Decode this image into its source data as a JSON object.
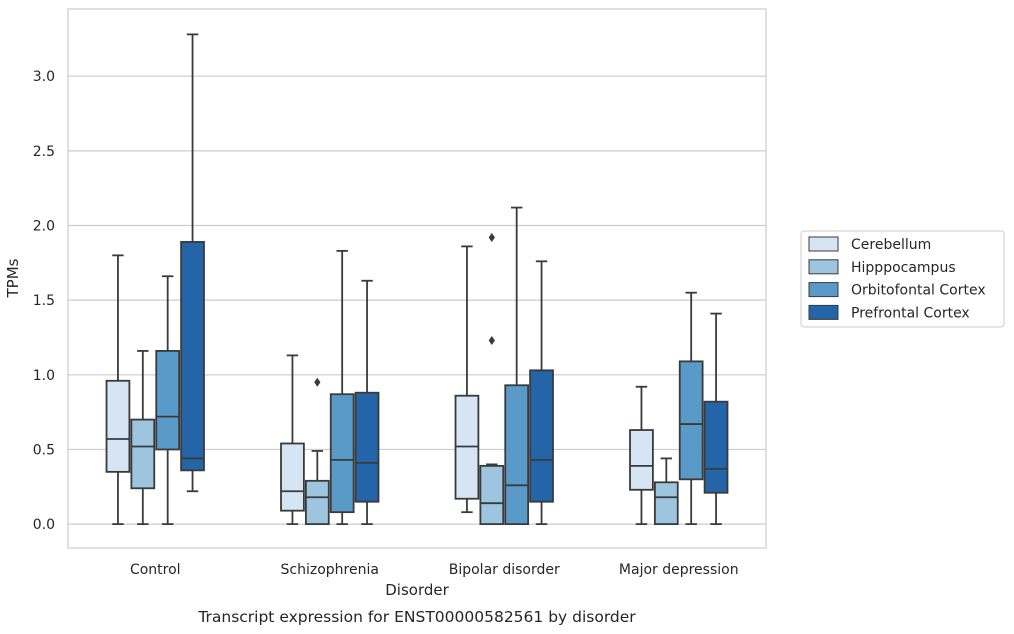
{
  "chart_data": {
    "type": "box",
    "caption": "Transcript expression for ENST00000582561 by disorder",
    "xlabel": "Disorder",
    "ylabel": "TPMs",
    "ylim": [
      -0.16,
      3.45
    ],
    "yticks": [
      0.0,
      0.5,
      1.0,
      1.5,
      2.0,
      2.5,
      3.0
    ],
    "ytick_labels": [
      "0.0",
      "0.5",
      "1.0",
      "1.5",
      "2.0",
      "2.5",
      "3.0"
    ],
    "grid": "horizontal",
    "legend_position": "right",
    "categories": [
      "Control",
      "Schizophrenia",
      "Bipolar disorder",
      "Major depression"
    ],
    "series": [
      {
        "name": "Cerebellum",
        "color": "#d5e5f3",
        "boxes": [
          {
            "whislo": 0.0,
            "q1": 0.35,
            "med": 0.57,
            "q3": 0.96,
            "whishi": 1.8,
            "fliers": []
          },
          {
            "whislo": 0.0,
            "q1": 0.09,
            "med": 0.22,
            "q3": 0.54,
            "whishi": 1.13,
            "fliers": []
          },
          {
            "whislo": 0.08,
            "q1": 0.17,
            "med": 0.52,
            "q3": 0.86,
            "whishi": 1.86,
            "fliers": []
          },
          {
            "whislo": 0.0,
            "q1": 0.23,
            "med": 0.39,
            "q3": 0.63,
            "whishi": 0.92,
            "fliers": []
          }
        ]
      },
      {
        "name": "Hipppocampus",
        "color": "#9dc5df",
        "boxes": [
          {
            "whislo": 0.0,
            "q1": 0.24,
            "med": 0.52,
            "q3": 0.7,
            "whishi": 1.16,
            "fliers": []
          },
          {
            "whislo": 0.0,
            "q1": 0.0,
            "med": 0.18,
            "q3": 0.29,
            "whishi": 0.49,
            "fliers": [
              0.95
            ]
          },
          {
            "whislo": 0.0,
            "q1": 0.0,
            "med": 0.14,
            "q3": 0.39,
            "whishi": 0.4,
            "fliers": [
              1.92,
              1.23
            ]
          },
          {
            "whislo": 0.0,
            "q1": 0.0,
            "med": 0.18,
            "q3": 0.28,
            "whishi": 0.44,
            "fliers": []
          }
        ]
      },
      {
        "name": "Orbitofontal Cortex",
        "color": "#5a9ac8",
        "boxes": [
          {
            "whislo": 0.0,
            "q1": 0.5,
            "med": 0.72,
            "q3": 1.16,
            "whishi": 1.66,
            "fliers": []
          },
          {
            "whislo": 0.0,
            "q1": 0.08,
            "med": 0.43,
            "q3": 0.87,
            "whishi": 1.83,
            "fliers": []
          },
          {
            "whislo": 0.0,
            "q1": 0.0,
            "med": 0.26,
            "q3": 0.93,
            "whishi": 2.12,
            "fliers": []
          },
          {
            "whislo": 0.0,
            "q1": 0.3,
            "med": 0.67,
            "q3": 1.09,
            "whishi": 1.55,
            "fliers": []
          }
        ]
      },
      {
        "name": "Prefrontal Cortex",
        "color": "#2464a8",
        "boxes": [
          {
            "whislo": 0.22,
            "q1": 0.36,
            "med": 0.44,
            "q3": 1.89,
            "whishi": 3.28,
            "fliers": []
          },
          {
            "whislo": 0.0,
            "q1": 0.15,
            "med": 0.41,
            "q3": 0.88,
            "whishi": 1.63,
            "fliers": []
          },
          {
            "whislo": 0.0,
            "q1": 0.15,
            "med": 0.43,
            "q3": 1.03,
            "whishi": 1.76,
            "fliers": []
          },
          {
            "whislo": 0.0,
            "q1": 0.21,
            "med": 0.37,
            "q3": 0.82,
            "whishi": 1.41,
            "fliers": []
          }
        ]
      }
    ]
  },
  "style": {
    "grid_color": "#cccccc",
    "frame_color": "#cccccc",
    "line_color": "#3a3a3a",
    "text_color": "#262626"
  }
}
